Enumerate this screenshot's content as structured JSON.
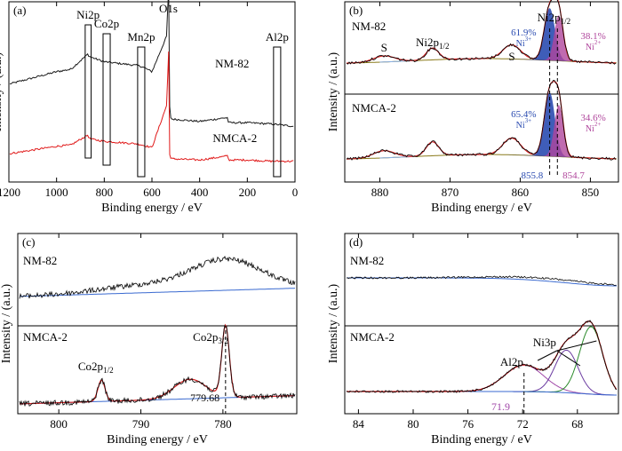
{
  "figure": {
    "panels": {
      "a": {
        "label": "(a)",
        "xlabel": "Binding energy / eV",
        "ylabel": "Intensity / (a.u.)",
        "ticks": [
          "1200",
          "1000",
          "800",
          "600",
          "400",
          "200",
          "0"
        ],
        "tick_values": [
          1200,
          1000,
          800,
          600,
          400,
          200,
          0
        ],
        "annotations": [
          "Ni2p",
          "Co2p",
          "Mn2p",
          "O1s",
          "Al2p",
          "NM-82",
          "NMCA-2"
        ]
      },
      "b": {
        "label": "(b)",
        "xlabel": "Binding energy / eV",
        "ylabel": "Intensity / (a.u.)",
        "ticks": [
          "880",
          "870",
          "860",
          "850"
        ],
        "tick_values": [
          880,
          870,
          860,
          850
        ],
        "sample_top": "NM-82",
        "sample_bottom": "NMCA-2",
        "satellite": "S",
        "ni_half": "Ni2p",
        "ni_half_sub": "1/2",
        "ni_threehalf": "Ni2p",
        "ni_threehalf_sub": "1/2",
        "ni3_label": "Ni",
        "ni3_sup": "3+",
        "ni2_label": "Ni",
        "ni2_sup": "2+",
        "pct_ni3_top": "61.9%",
        "pct_ni2_top": "38.1%",
        "pct_ni3_bot": "65.4%",
        "pct_ni2_bot": "34.6%",
        "line1": "855.8",
        "line2": "854.7"
      },
      "c": {
        "label": "(c)",
        "xlabel": "Binding energy / eV",
        "ylabel": "Intensity / (a.u.)",
        "ticks": [
          "800",
          "790",
          "780"
        ],
        "tick_values": [
          800,
          790,
          780
        ],
        "sample_top": "NM-82",
        "sample_bottom": "NMCA-2",
        "co_half": "Co2p",
        "co_half_sub": "1/2",
        "co_threehalf": "Co2p",
        "co_threehalf_sub": "3/2",
        "peak": "779.68"
      },
      "d": {
        "label": "(d)",
        "xlabel": "Binding energy / eV",
        "ylabel": "Intensity / (a.u.)",
        "ticks": [
          "84",
          "80",
          "76",
          "72",
          "68"
        ],
        "tick_values": [
          84,
          80,
          76,
          72,
          68
        ],
        "sample_top": "NM-82",
        "sample_bottom": "NMCA-2",
        "al": "Al2p",
        "ni3p": "Ni3p",
        "peak": "71.9"
      }
    }
  },
  "chart_data": [
    {
      "type": "line",
      "panel": "a",
      "xlim": [
        1200,
        0
      ],
      "xlabel": "Binding energy / eV",
      "ylabel": "Intensity / (a.u.)",
      "series": [
        {
          "name": "NM-82",
          "color": "#1a1a1a",
          "x": [
            1200,
            1000,
            940,
            870,
            860,
            800,
            660,
            640,
            600,
            531,
            528,
            520,
            400,
            290,
            284,
            200,
            100,
            0
          ],
          "y": [
            0.58,
            0.68,
            0.7,
            0.82,
            0.8,
            0.76,
            0.73,
            0.72,
            0.68,
            1.0,
            0.4,
            0.3,
            0.28,
            0.31,
            0.27,
            0.27,
            0.26,
            0.24
          ]
        },
        {
          "name": "NMCA-2",
          "color": "#e01818",
          "x": [
            1200,
            1000,
            940,
            870,
            860,
            800,
            660,
            640,
            600,
            531,
            528,
            520,
            400,
            290,
            284,
            200,
            100,
            0
          ],
          "y": [
            0.02,
            0.08,
            0.09,
            0.17,
            0.14,
            0.12,
            0.1,
            0.09,
            0.07,
            0.45,
            0.0,
            -0.02,
            -0.03,
            0.0,
            -0.03,
            -0.03,
            -0.04,
            -0.04
          ]
        }
      ],
      "annotations": [
        "Ni2p",
        "Co2p",
        "Mn2p",
        "O1s",
        "Al2p",
        "NM-82",
        "NMCA-2"
      ]
    },
    {
      "type": "area",
      "panel": "b",
      "xlim": [
        885,
        846
      ],
      "xlabel": "Binding energy / eV",
      "ylabel": "Intensity / (a.u.)",
      "samples": [
        "NM-82",
        "NMCA-2"
      ],
      "components": [
        {
          "name": "S",
          "center": 879.4
        },
        {
          "name": "Ni2p 1/2",
          "center": 872.5
        },
        {
          "name": "S",
          "center": 861.0
        },
        {
          "name": "Ni3+",
          "center": 855.8,
          "share_nm82": 61.9,
          "share_nmca2": 65.4
        },
        {
          "name": "Ni2+",
          "center": 854.7,
          "share_nm82": 38.1,
          "share_nmca2": 34.6
        }
      ],
      "reference_lines": [
        855.8,
        854.7
      ]
    },
    {
      "type": "line",
      "panel": "c",
      "xlim": [
        805,
        771
      ],
      "xlabel": "Binding energy / eV",
      "ylabel": "Intensity / (a.u.)",
      "samples": [
        "NM-82",
        "NMCA-2"
      ],
      "peaks": [
        {
          "name": "Co2p 1/2",
          "center": 794.8
        },
        {
          "name": "Co2p 3/2",
          "center": 779.68
        }
      ],
      "reference_lines": [
        779.68
      ]
    },
    {
      "type": "line",
      "panel": "d",
      "xlim": [
        85,
        65
      ],
      "xlabel": "Binding energy / eV",
      "ylabel": "Intensity / (a.u.)",
      "samples": [
        "NM-82",
        "NMCA-2"
      ],
      "peaks": [
        {
          "name": "Al2p",
          "center": 71.9
        },
        {
          "name": "Ni3p",
          "center": 68.8
        },
        {
          "name": "Ni3p",
          "center": 67.0
        }
      ],
      "reference_lines": [
        71.9
      ]
    }
  ]
}
